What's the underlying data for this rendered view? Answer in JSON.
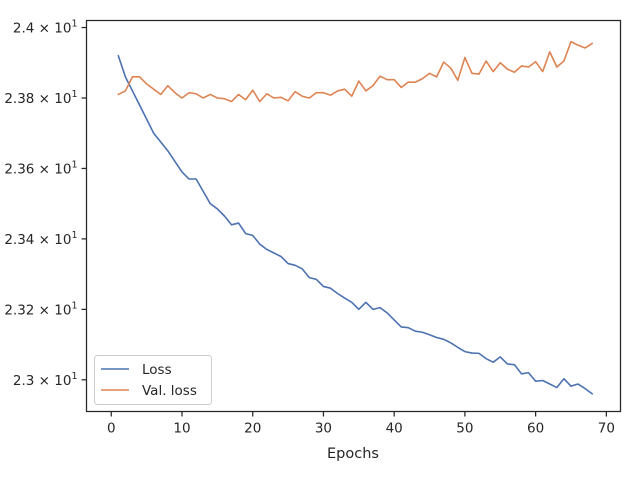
{
  "chart_data": {
    "type": "line",
    "xlabel": "Epochs",
    "ylabel": "",
    "xlim": [
      -3.5,
      72
    ],
    "ylim": [
      22.91,
      24.02
    ],
    "grid": false,
    "legend_position": "bottom-left",
    "x_ticks": [
      {
        "value": 0,
        "label": "0"
      },
      {
        "value": 10,
        "label": "10"
      },
      {
        "value": 20,
        "label": "20"
      },
      {
        "value": 30,
        "label": "30"
      },
      {
        "value": 40,
        "label": "40"
      },
      {
        "value": 50,
        "label": "50"
      },
      {
        "value": 60,
        "label": "60"
      },
      {
        "value": 70,
        "label": "70"
      }
    ],
    "y_ticks": [
      {
        "value": 23.0,
        "mantissa": "2.3",
        "exponent": "1"
      },
      {
        "value": 23.2,
        "mantissa": "2.32",
        "exponent": "1"
      },
      {
        "value": 23.4,
        "mantissa": "2.34",
        "exponent": "1"
      },
      {
        "value": 23.6,
        "mantissa": "2.36",
        "exponent": "1"
      },
      {
        "value": 23.8,
        "mantissa": "2.38",
        "exponent": "1"
      },
      {
        "value": 24.0,
        "mantissa": "2.4",
        "exponent": "1"
      }
    ],
    "x": [
      1,
      2,
      3,
      4,
      5,
      6,
      7,
      8,
      9,
      10,
      11,
      12,
      13,
      14,
      15,
      16,
      17,
      18,
      19,
      20,
      21,
      22,
      23,
      24,
      25,
      26,
      27,
      28,
      29,
      30,
      31,
      32,
      33,
      34,
      35,
      36,
      37,
      38,
      39,
      40,
      41,
      42,
      43,
      44,
      45,
      46,
      47,
      48,
      49,
      50,
      51,
      52,
      53,
      54,
      55,
      56,
      57,
      58,
      59,
      60,
      61,
      62,
      63,
      64,
      65,
      66,
      67,
      68
    ],
    "series": [
      {
        "name": "Loss",
        "color": "#4c72b0",
        "values": [
          23.92,
          23.86,
          23.82,
          23.78,
          23.74,
          23.7,
          23.675,
          23.65,
          23.62,
          23.59,
          23.57,
          23.57,
          23.535,
          23.5,
          23.485,
          23.465,
          23.44,
          23.445,
          23.415,
          23.41,
          23.385,
          23.37,
          23.36,
          23.35,
          23.33,
          23.325,
          23.315,
          23.29,
          23.285,
          23.265,
          23.26,
          23.245,
          23.232,
          23.22,
          23.2,
          23.22,
          23.2,
          23.205,
          23.19,
          23.17,
          23.15,
          23.148,
          23.138,
          23.135,
          23.128,
          23.12,
          23.115,
          23.105,
          23.092,
          23.08,
          23.076,
          23.075,
          23.06,
          23.05,
          23.065,
          23.045,
          23.043,
          23.017,
          23.02,
          22.996,
          22.998,
          22.988,
          22.978,
          23.003,
          22.982,
          22.988,
          22.975,
          22.96
        ]
      },
      {
        "name": "Val. loss",
        "color": "#dd8452",
        "values": [
          23.81,
          23.82,
          23.86,
          23.86,
          23.84,
          23.825,
          23.81,
          23.835,
          23.815,
          23.8,
          23.815,
          23.812,
          23.8,
          23.81,
          23.8,
          23.798,
          23.79,
          23.81,
          23.795,
          23.822,
          23.79,
          23.812,
          23.8,
          23.802,
          23.792,
          23.818,
          23.805,
          23.8,
          23.815,
          23.815,
          23.808,
          23.82,
          23.825,
          23.805,
          23.848,
          23.82,
          23.835,
          23.862,
          23.852,
          23.852,
          23.83,
          23.845,
          23.845,
          23.855,
          23.87,
          23.86,
          23.902,
          23.885,
          23.85,
          23.915,
          23.87,
          23.868,
          23.905,
          23.875,
          23.9,
          23.882,
          23.873,
          23.891,
          23.888,
          23.903,
          23.875,
          23.931,
          23.888,
          23.905,
          23.96,
          23.95,
          23.942,
          23.955
        ]
      }
    ]
  }
}
